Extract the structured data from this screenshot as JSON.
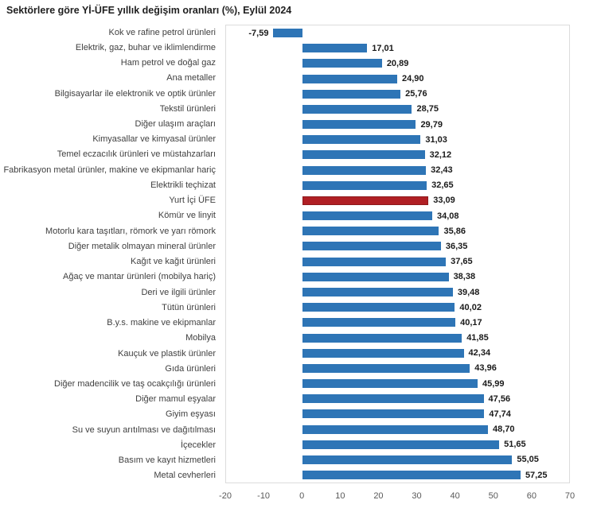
{
  "title": "Sektörlere göre Yİ-ÜFE yıllık değişim oranları (%), Eylül 2024",
  "colors": {
    "bar": "#2e75b6",
    "highlight_bar": "#b01f24",
    "highlight_border": "#8e191c",
    "plot_border": "#dcdcdc",
    "category_text": "#404040",
    "value_text": "#1a1a1a",
    "tick_text": "#595959"
  },
  "chart_data": {
    "type": "bar",
    "orientation": "horizontal",
    "title": "Sektörlere göre Yİ-ÜFE yıllık değişim oranları (%), Eylül 2024",
    "xlabel": "",
    "ylabel": "",
    "xlim": [
      -20,
      70
    ],
    "x_ticks": [
      -20,
      -10,
      0,
      10,
      20,
      30,
      40,
      50,
      60,
      70
    ],
    "grid": false,
    "legend": false,
    "highlight_category": "Yurt İçi ÜFE",
    "highlight_index": 11,
    "categories": [
      "Kok ve rafine petrol ürünleri",
      "Elektrik, gaz, buhar ve iklimlendirme",
      "Ham petrol ve doğal gaz",
      "Ana metaller",
      "Bilgisayarlar ile elektronik ve optik ürünler",
      "Tekstil ürünleri",
      "Diğer ulaşım araçları",
      "Kimyasallar ve kimyasal ürünler",
      "Temel eczacılık ürünleri ve müstahzarları",
      "Fabrikasyon metal ürünler, makine ve ekipmanlar hariç",
      "Elektrikli teçhizat",
      "Yurt İçi ÜFE",
      "Kömür ve linyit",
      "Motorlu kara taşıtları, römork ve yarı römork",
      "Diğer metalik olmayan mineral ürünler",
      "Kağıt ve kağıt ürünleri",
      "Ağaç ve mantar ürünleri (mobilya hariç)",
      "Deri ve ilgili ürünler",
      "Tütün ürünleri",
      "B.y.s. makine ve ekipmanlar",
      "Mobilya",
      "Kauçuk ve plastik ürünler",
      "Gıda ürünleri",
      "Diğer madencilik ve taş ocakçılığı ürünleri",
      "Diğer mamul eşyalar",
      "Giyim eşyası",
      "Su ve suyun arıtılması ve dağıtılması",
      "İçecekler",
      "Basım ve kayıt hizmetleri",
      "Metal cevherleri"
    ],
    "values": [
      -7.59,
      17.01,
      20.89,
      24.9,
      25.76,
      28.75,
      29.79,
      31.03,
      32.12,
      32.43,
      32.65,
      33.09,
      34.08,
      35.86,
      36.35,
      37.65,
      38.38,
      39.48,
      40.02,
      40.17,
      41.85,
      42.34,
      43.96,
      45.99,
      47.56,
      47.74,
      48.7,
      51.65,
      55.05,
      57.25
    ],
    "value_labels": [
      "-7,59",
      "17,01",
      "20,89",
      "24,90",
      "25,76",
      "28,75",
      "29,79",
      "31,03",
      "32,12",
      "32,43",
      "32,65",
      "33,09",
      "34,08",
      "35,86",
      "36,35",
      "37,65",
      "38,38",
      "39,48",
      "40,02",
      "40,17",
      "41,85",
      "42,34",
      "43,96",
      "45,99",
      "47,56",
      "47,74",
      "48,70",
      "51,65",
      "55,05",
      "57,25"
    ]
  }
}
